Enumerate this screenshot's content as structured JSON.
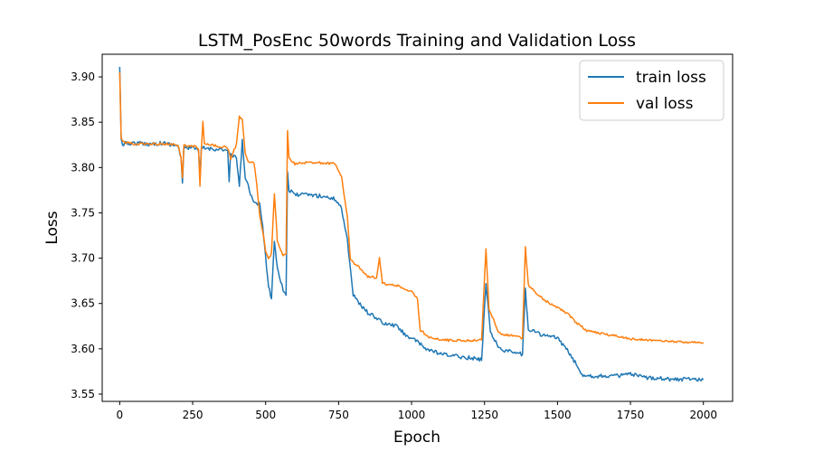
{
  "chart_data": {
    "type": "line",
    "title": "LSTM_PosEnc 50words Training and Validation Loss",
    "xlabel": "Epoch",
    "ylabel": "Loss",
    "xlim": [
      -60,
      2100
    ],
    "ylim": [
      3.542,
      3.925
    ],
    "xticks": [
      0,
      250,
      500,
      750,
      1000,
      1250,
      1500,
      1750,
      2000
    ],
    "yticks": [
      3.55,
      3.6,
      3.65,
      3.7,
      3.75,
      3.8,
      3.85,
      3.9
    ],
    "grid": false,
    "legend_position": "upper right",
    "series": [
      {
        "name": "train loss",
        "color": "#1f77b4",
        "points": [
          [
            0,
            3.911
          ],
          [
            5,
            3.83
          ],
          [
            10,
            3.826
          ],
          [
            50,
            3.827
          ],
          [
            100,
            3.826
          ],
          [
            150,
            3.827
          ],
          [
            200,
            3.824
          ],
          [
            210,
            3.81
          ],
          [
            215,
            3.783
          ],
          [
            220,
            3.822
          ],
          [
            250,
            3.822
          ],
          [
            270,
            3.818
          ],
          [
            275,
            3.79
          ],
          [
            280,
            3.822
          ],
          [
            300,
            3.821
          ],
          [
            350,
            3.82
          ],
          [
            370,
            3.818
          ],
          [
            375,
            3.785
          ],
          [
            380,
            3.814
          ],
          [
            400,
            3.81
          ],
          [
            410,
            3.78
          ],
          [
            420,
            3.829
          ],
          [
            430,
            3.79
          ],
          [
            440,
            3.78
          ],
          [
            460,
            3.76
          ],
          [
            480,
            3.76
          ],
          [
            490,
            3.735
          ],
          [
            500,
            3.7
          ],
          [
            510,
            3.67
          ],
          [
            520,
            3.655
          ],
          [
            530,
            3.72
          ],
          [
            540,
            3.69
          ],
          [
            560,
            3.665
          ],
          [
            570,
            3.66
          ],
          [
            575,
            3.795
          ],
          [
            580,
            3.775
          ],
          [
            600,
            3.77
          ],
          [
            650,
            3.77
          ],
          [
            700,
            3.768
          ],
          [
            740,
            3.765
          ],
          [
            760,
            3.755
          ],
          [
            780,
            3.72
          ],
          [
            800,
            3.66
          ],
          [
            820,
            3.65
          ],
          [
            850,
            3.64
          ],
          [
            870,
            3.636
          ],
          [
            890,
            3.632
          ],
          [
            900,
            3.628
          ],
          [
            950,
            3.625
          ],
          [
            980,
            3.615
          ],
          [
            1000,
            3.612
          ],
          [
            1025,
            3.606
          ],
          [
            1050,
            3.6
          ],
          [
            1100,
            3.594
          ],
          [
            1150,
            3.592
          ],
          [
            1200,
            3.59
          ],
          [
            1240,
            3.588
          ],
          [
            1255,
            3.673
          ],
          [
            1270,
            3.62
          ],
          [
            1300,
            3.6
          ],
          [
            1350,
            3.596
          ],
          [
            1380,
            3.594
          ],
          [
            1390,
            3.665
          ],
          [
            1400,
            3.622
          ],
          [
            1450,
            3.615
          ],
          [
            1500,
            3.612
          ],
          [
            1530,
            3.6
          ],
          [
            1560,
            3.585
          ],
          [
            1580,
            3.572
          ],
          [
            1620,
            3.57
          ],
          [
            1700,
            3.57
          ],
          [
            1750,
            3.572
          ],
          [
            1800,
            3.568
          ],
          [
            1850,
            3.568
          ],
          [
            1900,
            3.566
          ],
          [
            1950,
            3.567
          ],
          [
            2000,
            3.566
          ]
        ]
      },
      {
        "name": "val loss",
        "color": "#ff7f0e",
        "points": [
          [
            0,
            3.905
          ],
          [
            5,
            3.832
          ],
          [
            10,
            3.828
          ],
          [
            50,
            3.826
          ],
          [
            100,
            3.826
          ],
          [
            150,
            3.826
          ],
          [
            200,
            3.825
          ],
          [
            210,
            3.81
          ],
          [
            215,
            3.79
          ],
          [
            220,
            3.824
          ],
          [
            260,
            3.824
          ],
          [
            270,
            3.82
          ],
          [
            275,
            3.78
          ],
          [
            280,
            3.822
          ],
          [
            285,
            3.85
          ],
          [
            290,
            3.826
          ],
          [
            350,
            3.823
          ],
          [
            370,
            3.822
          ],
          [
            380,
            3.81
          ],
          [
            400,
            3.825
          ],
          [
            410,
            3.856
          ],
          [
            420,
            3.852
          ],
          [
            430,
            3.815
          ],
          [
            440,
            3.806
          ],
          [
            460,
            3.806
          ],
          [
            470,
            3.78
          ],
          [
            480,
            3.745
          ],
          [
            490,
            3.73
          ],
          [
            500,
            3.708
          ],
          [
            510,
            3.7
          ],
          [
            520,
            3.705
          ],
          [
            530,
            3.772
          ],
          [
            540,
            3.72
          ],
          [
            560,
            3.702
          ],
          [
            570,
            3.705
          ],
          [
            575,
            3.84
          ],
          [
            580,
            3.81
          ],
          [
            600,
            3.804
          ],
          [
            650,
            3.806
          ],
          [
            700,
            3.805
          ],
          [
            740,
            3.804
          ],
          [
            760,
            3.79
          ],
          [
            780,
            3.745
          ],
          [
            790,
            3.7
          ],
          [
            800,
            3.695
          ],
          [
            820,
            3.69
          ],
          [
            850,
            3.68
          ],
          [
            880,
            3.678
          ],
          [
            890,
            3.7
          ],
          [
            900,
            3.672
          ],
          [
            950,
            3.67
          ],
          [
            980,
            3.665
          ],
          [
            1000,
            3.663
          ],
          [
            1020,
            3.655
          ],
          [
            1030,
            3.62
          ],
          [
            1040,
            3.618
          ],
          [
            1060,
            3.612
          ],
          [
            1100,
            3.61
          ],
          [
            1150,
            3.609
          ],
          [
            1200,
            3.609
          ],
          [
            1240,
            3.61
          ],
          [
            1255,
            3.711
          ],
          [
            1265,
            3.645
          ],
          [
            1300,
            3.617
          ],
          [
            1350,
            3.614
          ],
          [
            1380,
            3.612
          ],
          [
            1390,
            3.713
          ],
          [
            1400,
            3.67
          ],
          [
            1450,
            3.655
          ],
          [
            1500,
            3.645
          ],
          [
            1530,
            3.64
          ],
          [
            1560,
            3.63
          ],
          [
            1580,
            3.625
          ],
          [
            1600,
            3.62
          ],
          [
            1650,
            3.617
          ],
          [
            1700,
            3.614
          ],
          [
            1750,
            3.611
          ],
          [
            1800,
            3.61
          ],
          [
            1850,
            3.609
          ],
          [
            1900,
            3.608
          ],
          [
            1950,
            3.607
          ],
          [
            2000,
            3.607
          ]
        ]
      }
    ]
  }
}
